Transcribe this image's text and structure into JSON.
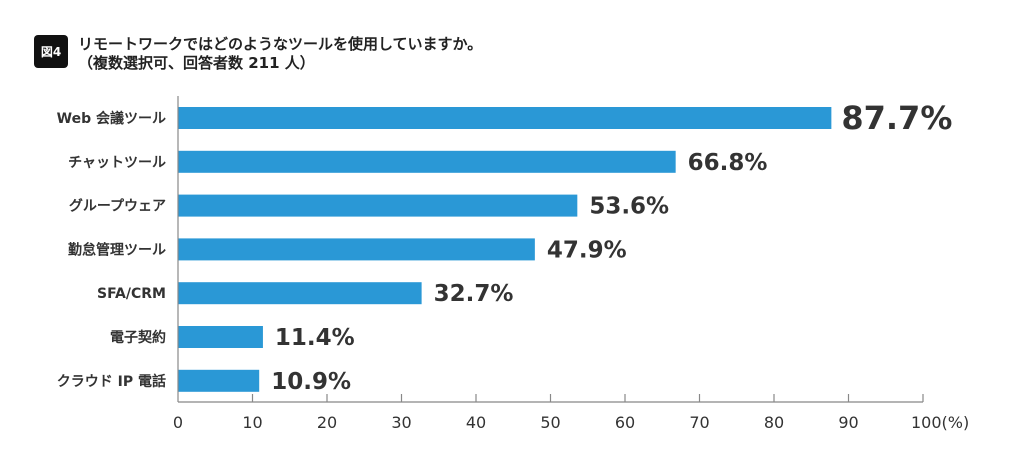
{
  "figure_badge": "図4",
  "title_line1": "リモートワークではどのようなツールを使用していますか。",
  "title_line2": "（複数選択可、回答者数 211 人）",
  "chart_data": {
    "type": "bar",
    "orientation": "horizontal",
    "title": "リモートワークではどのようなツールを使用していますか。（複数選択可、回答者数 211 人）",
    "categories": [
      "Web 会議ツール",
      "チャットツール",
      "グループウェア",
      "勤怠管理ツール",
      "SFA/CRM",
      "電子契約",
      "クラウド IP 電話"
    ],
    "values": [
      87.7,
      66.8,
      53.6,
      47.9,
      32.7,
      11.4,
      10.9
    ],
    "value_labels": [
      "87.7%",
      "66.8%",
      "53.6%",
      "47.9%",
      "32.7%",
      "11.4%",
      "10.9%"
    ],
    "xlim": [
      0,
      100
    ],
    "xticks": [
      "0",
      "10",
      "20",
      "30",
      "40",
      "50",
      "60",
      "70",
      "80",
      "90",
      "100(%)"
    ],
    "xlabel": "(%)",
    "grid": false,
    "bar_color": "#2a98d6"
  }
}
